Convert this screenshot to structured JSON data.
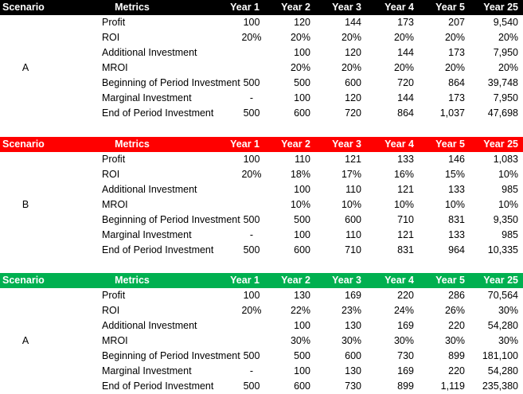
{
  "columns": [
    "Scenario",
    "Metrics",
    "Year 1",
    "Year 2",
    "Year 3",
    "Year 4",
    "Year 5",
    "Year 25"
  ],
  "colors": {
    "header_black": "#000000",
    "header_red": "#ff0000",
    "header_green": "#00b050",
    "header_text": "#ffffff"
  },
  "scenarios": [
    {
      "label": "A",
      "header_color": "#000000",
      "rows": [
        {
          "metric": "Profit",
          "values": [
            "100",
            "120",
            "144",
            "173",
            "207",
            "9,540"
          ]
        },
        {
          "metric": "ROI",
          "values": [
            "20%",
            "20%",
            "20%",
            "20%",
            "20%",
            "20%"
          ]
        },
        {
          "metric": "Additional Investment",
          "values": [
            "",
            "100",
            "120",
            "144",
            "173",
            "7,950"
          ]
        },
        {
          "metric": "MROI",
          "values": [
            "",
            "20%",
            "20%",
            "20%",
            "20%",
            "20%"
          ]
        },
        {
          "metric": "Beginning of Period Investment",
          "values": [
            "500",
            "500",
            "600",
            "720",
            "864",
            "39,748"
          ]
        },
        {
          "metric": "Marginal Investment",
          "values": [
            "-",
            "100",
            "120",
            "144",
            "173",
            "7,950"
          ]
        },
        {
          "metric": "End of Period Investment",
          "values": [
            "500",
            "600",
            "720",
            "864",
            "1,037",
            "47,698"
          ]
        }
      ]
    },
    {
      "label": "B",
      "header_color": "#ff0000",
      "rows": [
        {
          "metric": "Profit",
          "values": [
            "100",
            "110",
            "121",
            "133",
            "146",
            "1,083"
          ]
        },
        {
          "metric": "ROI",
          "values": [
            "20%",
            "18%",
            "17%",
            "16%",
            "15%",
            "10%"
          ]
        },
        {
          "metric": "Additional Investment",
          "values": [
            "",
            "100",
            "110",
            "121",
            "133",
            "985"
          ]
        },
        {
          "metric": "MROI",
          "values": [
            "",
            "10%",
            "10%",
            "10%",
            "10%",
            "10%"
          ]
        },
        {
          "metric": "Beginning of Period Investment",
          "values": [
            "500",
            "500",
            "600",
            "710",
            "831",
            "9,350"
          ]
        },
        {
          "metric": "Marginal Investment",
          "values": [
            "-",
            "100",
            "110",
            "121",
            "133",
            "985"
          ]
        },
        {
          "metric": "End of Period Investment",
          "values": [
            "500",
            "600",
            "710",
            "831",
            "964",
            "10,335"
          ]
        }
      ]
    },
    {
      "label": "A",
      "header_color": "#00b050",
      "rows": [
        {
          "metric": "Profit",
          "values": [
            "100",
            "130",
            "169",
            "220",
            "286",
            "70,564"
          ]
        },
        {
          "metric": "ROI",
          "values": [
            "20%",
            "22%",
            "23%",
            "24%",
            "26%",
            "30%"
          ]
        },
        {
          "metric": "Additional Investment",
          "values": [
            "",
            "100",
            "130",
            "169",
            "220",
            "54,280"
          ]
        },
        {
          "metric": "MROI",
          "values": [
            "",
            "30%",
            "30%",
            "30%",
            "30%",
            "30%"
          ]
        },
        {
          "metric": "Beginning of Period Investment",
          "values": [
            "500",
            "500",
            "600",
            "730",
            "899",
            "181,100"
          ]
        },
        {
          "metric": "Marginal Investment",
          "values": [
            "-",
            "100",
            "130",
            "169",
            "220",
            "54,280"
          ]
        },
        {
          "metric": "End of Period Investment",
          "values": [
            "500",
            "600",
            "730",
            "899",
            "1,119",
            "235,380"
          ]
        }
      ]
    }
  ]
}
